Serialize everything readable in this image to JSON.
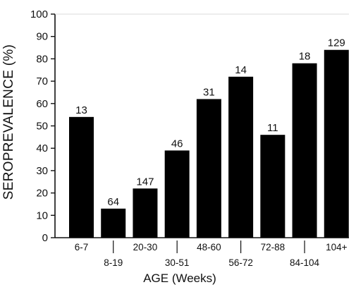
{
  "chart_data": {
    "type": "bar",
    "xlabel": "AGE (Weeks)",
    "ylabel": "SEROPREVALENCE (%)",
    "ylim": [
      0,
      100
    ],
    "yticks": [
      0,
      10,
      20,
      30,
      40,
      50,
      60,
      70,
      80,
      90,
      100
    ],
    "categories": [
      "6-7",
      "8-19",
      "20-30",
      "30-51",
      "48-60",
      "56-72",
      "72-88",
      "84-104",
      "104+"
    ],
    "values": [
      54,
      13,
      22,
      39,
      62,
      72,
      46,
      78,
      84
    ],
    "sample_sizes": [
      "13",
      "64",
      "147",
      "46",
      "31",
      "14",
      "11",
      "18",
      "129"
    ],
    "bar_color": "#000000",
    "grid": false,
    "legend": "none"
  }
}
